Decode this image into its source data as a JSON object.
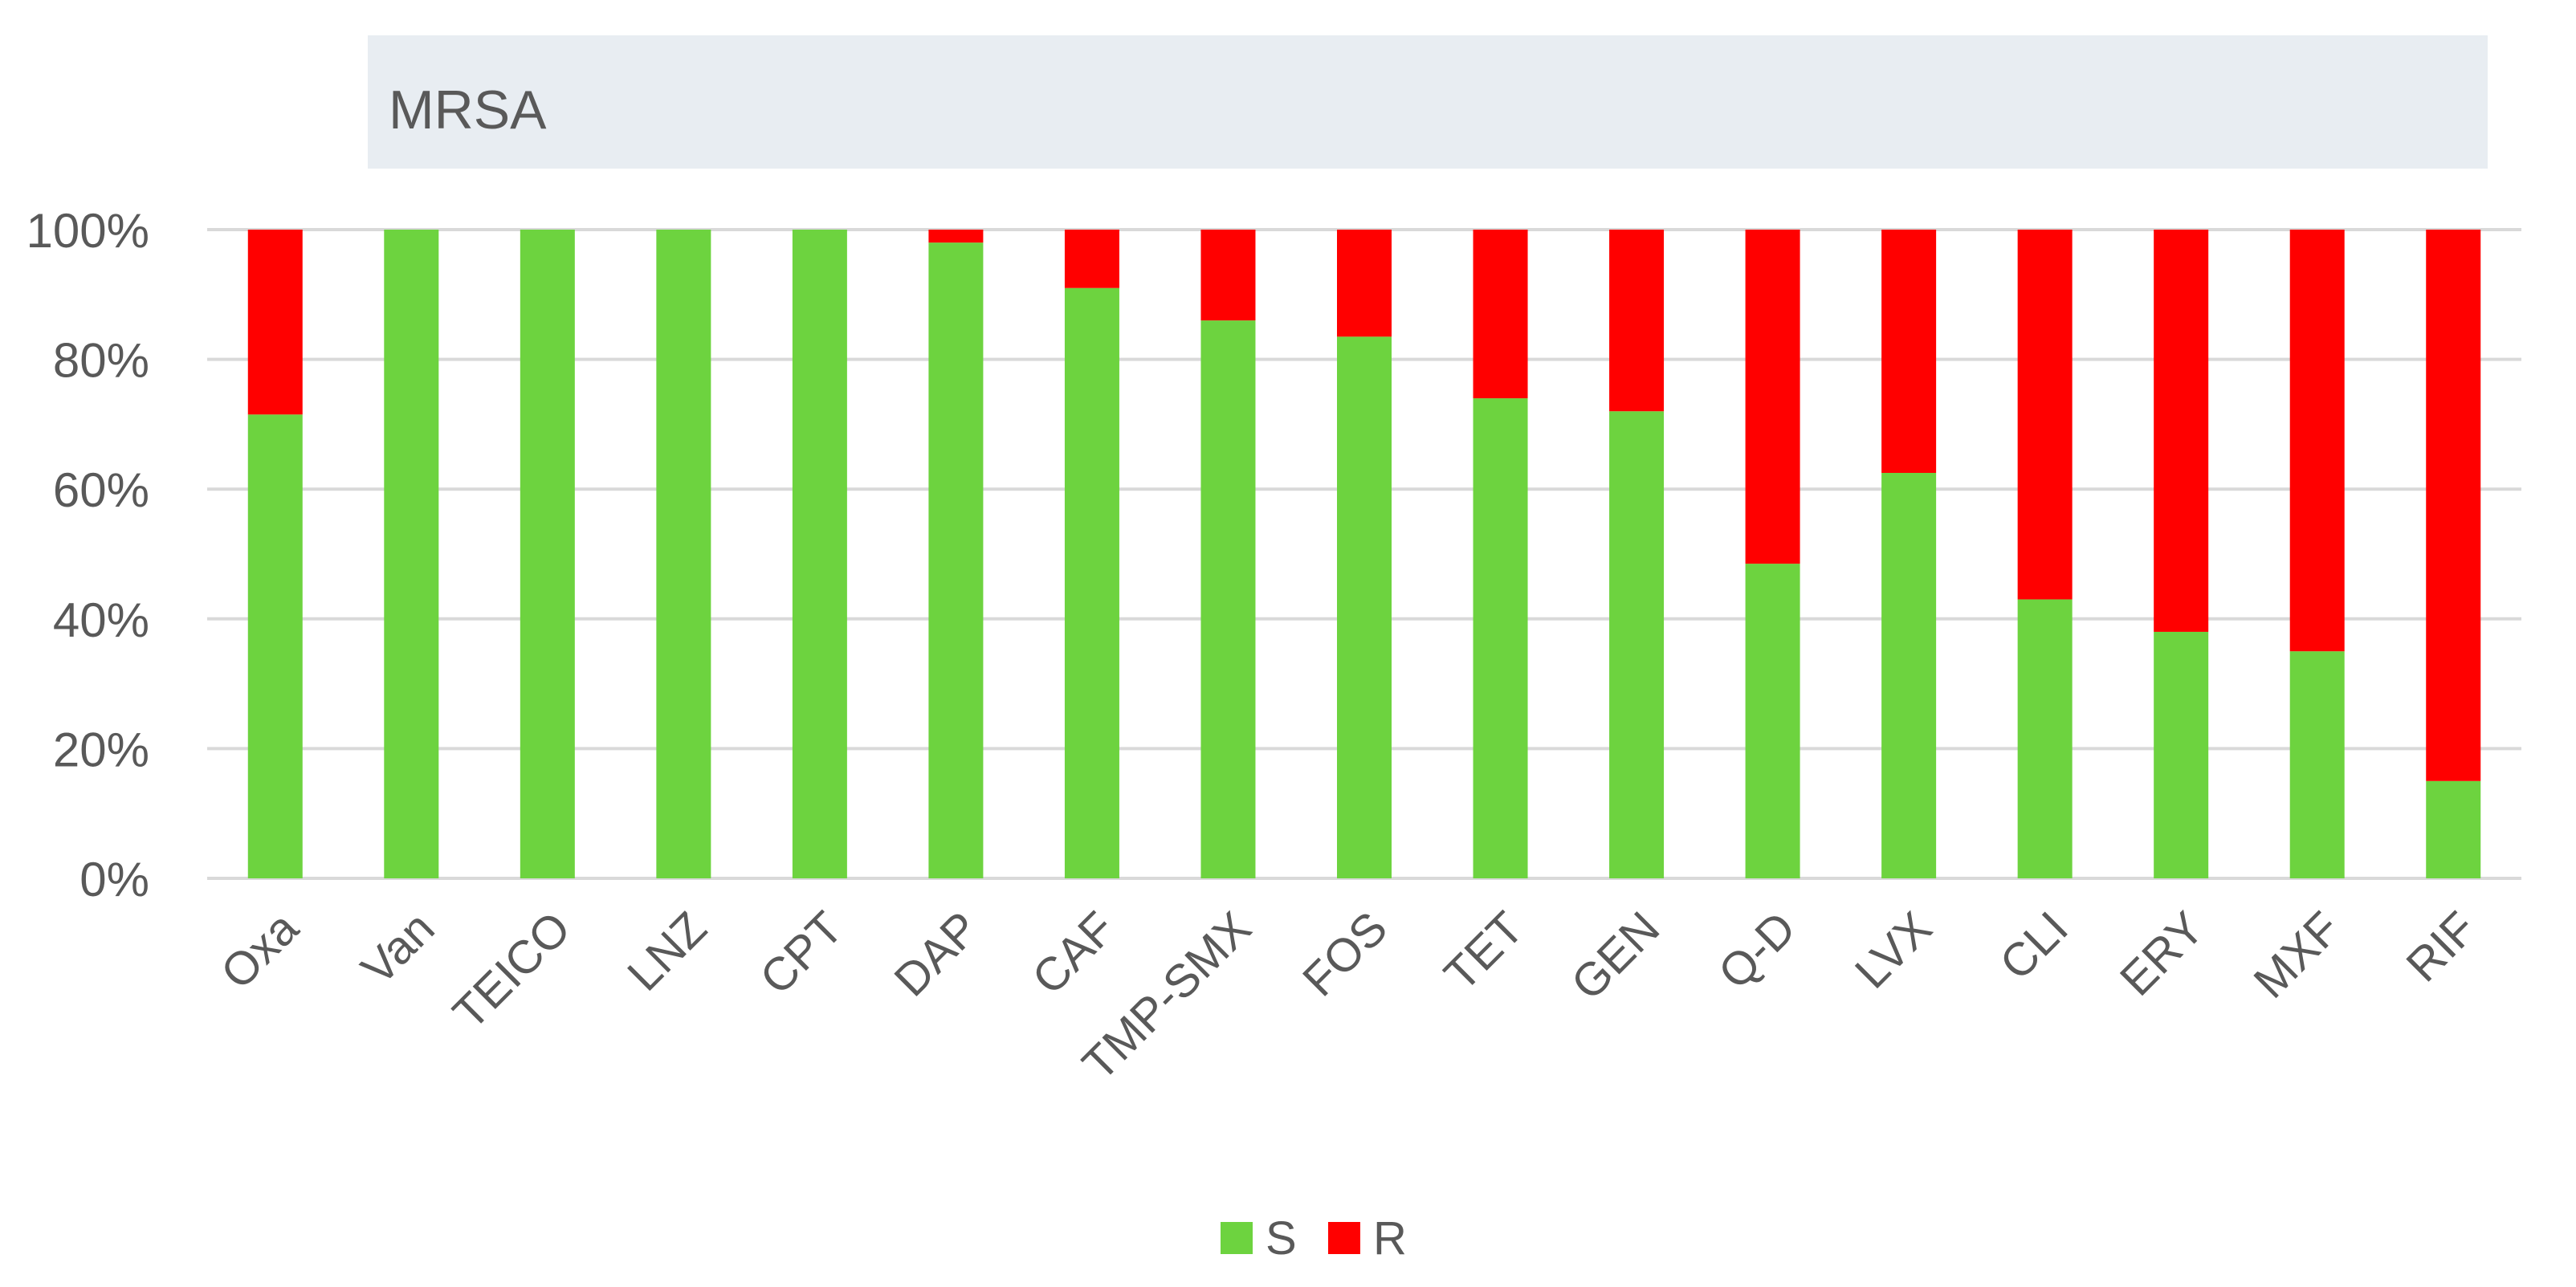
{
  "chart_data": {
    "type": "bar",
    "stacked": true,
    "title": "MRSA",
    "categories": [
      "Oxa",
      "Van",
      "TEICO",
      "LNZ",
      "CPT",
      "DAP",
      "CAF",
      "TMP-SMX",
      "FOS",
      "TET",
      "GEN",
      "Q-D",
      "LVX",
      "CLI",
      "ERY",
      "MXF",
      "RIF"
    ],
    "series": [
      {
        "name": "S",
        "color": "#6DD33F",
        "values": [
          71.5,
          100,
          100,
          100,
          100,
          98,
          91,
          86,
          83.5,
          74,
          72,
          48.5,
          62.5,
          43,
          38,
          35,
          15
        ]
      },
      {
        "name": "R",
        "color": "#FF0000",
        "values": [
          28.5,
          0,
          0,
          0,
          0,
          2,
          9,
          14,
          16.5,
          26,
          28,
          51.5,
          37.5,
          57,
          62,
          65,
          85
        ]
      }
    ],
    "ylim": [
      0,
      100
    ],
    "yticks": [
      "0%",
      "20%",
      "40%",
      "60%",
      "80%",
      "100%"
    ],
    "xlabel": "",
    "ylabel": "",
    "grid": true,
    "legend_position": "bottom",
    "colors": {
      "title_band": "#E8EDF2",
      "gridline": "#D9D9D9",
      "axis_text": "#595959"
    }
  }
}
